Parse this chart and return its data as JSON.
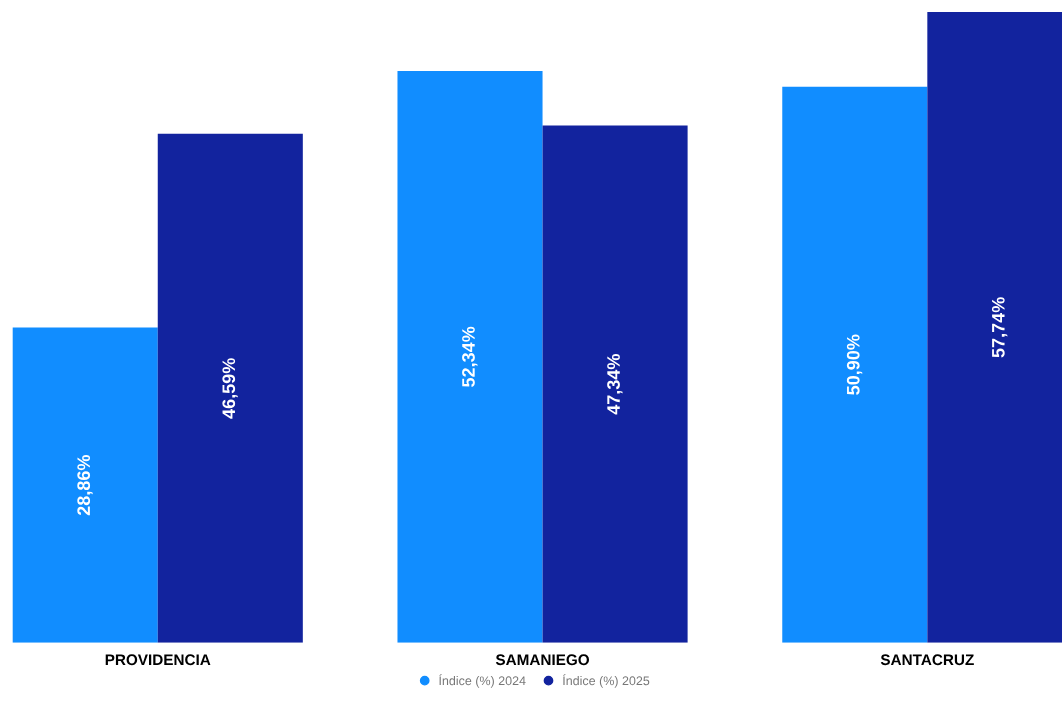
{
  "chart_data": {
    "type": "bar",
    "categories": [
      "PROVIDENCIA",
      "SAMANIEGO",
      "SANTACRUZ"
    ],
    "series": [
      {
        "name": "Índice (%) 2024",
        "color": "#118dff",
        "values": [
          28.86,
          52.34,
          50.9
        ],
        "value_labels": [
          "28,86%",
          "52,34%",
          "50,90%"
        ]
      },
      {
        "name": "Índice (%) 2025",
        "color": "#12239e",
        "values": [
          46.59,
          47.34,
          57.74
        ],
        "value_labels": [
          "46,59%",
          "47,34%",
          "57,74%"
        ]
      }
    ],
    "legend": "bottom",
    "grid": false
  }
}
